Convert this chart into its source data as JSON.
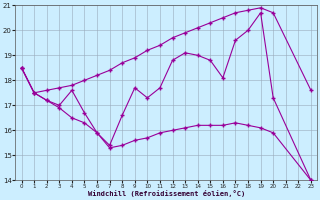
{
  "xlabel": "Windchill (Refroidissement éolien,°C)",
  "background_color": "#cceeff",
  "line_color": "#990099",
  "grid_color": "#99aabb",
  "x": [
    0,
    1,
    2,
    3,
    4,
    5,
    6,
    7,
    8,
    9,
    10,
    11,
    12,
    13,
    14,
    15,
    16,
    17,
    18,
    19,
    20,
    21,
    22,
    23
  ],
  "y_temp": [
    18.5,
    17.5,
    17.2,
    17.0,
    17.6,
    16.7,
    15.9,
    15.4,
    16.6,
    17.7,
    17.3,
    17.7,
    18.8,
    19.1,
    19.0,
    18.8,
    18.1,
    19.6,
    20.0,
    20.7,
    17.3,
    14.0
  ],
  "y_wc_max": [
    18.5,
    17.5,
    17.6,
    17.7,
    17.8,
    18.0,
    18.2,
    18.4,
    18.7,
    18.9,
    19.2,
    19.4,
    19.7,
    19.9,
    20.1,
    20.3,
    20.5,
    20.7,
    20.8,
    20.9,
    20.7,
    17.6
  ],
  "y_wc_min": [
    18.5,
    17.5,
    17.2,
    16.9,
    16.5,
    16.3,
    15.9,
    15.3,
    15.4,
    15.6,
    15.7,
    15.9,
    16.0,
    16.1,
    16.2,
    16.2,
    16.2,
    16.3,
    16.2,
    16.1,
    15.9,
    14.0
  ],
  "x_temp": [
    0,
    1,
    2,
    3,
    4,
    5,
    6,
    7,
    8,
    9,
    10,
    11,
    12,
    13,
    14,
    15,
    16,
    17,
    18,
    19,
    20,
    23
  ],
  "x_wc_max": [
    0,
    1,
    2,
    3,
    4,
    5,
    6,
    7,
    8,
    9,
    10,
    11,
    12,
    13,
    14,
    15,
    16,
    17,
    18,
    19,
    20,
    23
  ],
  "x_wc_min": [
    0,
    1,
    2,
    3,
    4,
    5,
    6,
    7,
    8,
    9,
    10,
    11,
    12,
    13,
    14,
    15,
    16,
    17,
    18,
    19,
    20,
    23
  ],
  "ylim": [
    14,
    21
  ],
  "yticks": [
    14,
    15,
    16,
    17,
    18,
    19,
    20,
    21
  ],
  "xlim_min": -0.5,
  "xlim_max": 23.5,
  "markersize": 2.0,
  "linewidth": 0.8
}
